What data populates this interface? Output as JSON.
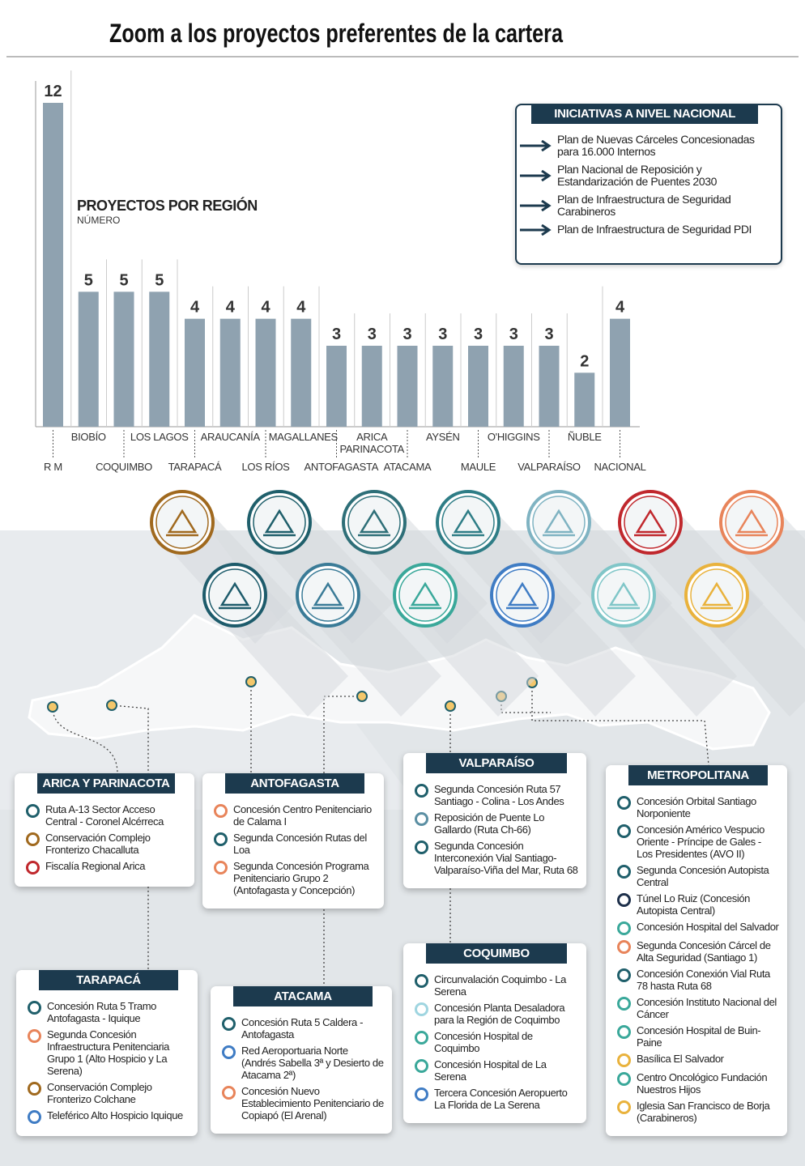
{
  "title": "Zoom a los proyectos preferentes de la cartera",
  "chart_data": {
    "type": "bar",
    "title": "PROYECTOS POR REGIÓN",
    "subtitle": "NÚMERO",
    "categories": [
      "R M",
      "BIOBÍO",
      "COQUIMBO",
      "LOS LAGOS",
      "TARAPACÁ",
      "ARAUCANÍA",
      "LOS RÍOS",
      "MAGALLANES",
      "ANTOFAGASTA",
      "ARICA PARINACOTA",
      "ATACAMA",
      "AYSÉN",
      "MAULE",
      "O'HIGGINS",
      "VALPARAÍSO",
      "ÑUBLE",
      "NACIONAL"
    ],
    "values": [
      12,
      5,
      5,
      5,
      4,
      4,
      4,
      4,
      3,
      3,
      3,
      3,
      3,
      3,
      3,
      2,
      4
    ],
    "color": "#8fa2b0",
    "ylim": [
      0,
      12
    ]
  },
  "national": {
    "title": "INICIATIVAS A NIVEL NACIONAL",
    "items": [
      "Plan de Nuevas Cárceles Concesionadas para 16.000 Internos",
      "Plan Nacional de Reposición y Estandarización de Puentes 2030",
      "Plan de Infraestructura de Seguridad Carabineros",
      "Plan de Infraestructura de Seguridad PDI"
    ]
  },
  "regions": [
    {
      "title": "ARICA Y PARINACOTA",
      "items": [
        {
          "text": "Ruta A-13 Sector Acceso Central - Coronel Alcérreca",
          "color": "#1f5f6b"
        },
        {
          "text": "Conservación Complejo Fronterizo Chacalluta",
          "color": "#a0691e"
        },
        {
          "text": "Fiscalía Regional Arica",
          "color": "#c0282d"
        }
      ]
    },
    {
      "title": "ANTOFAGASTA",
      "items": [
        {
          "text": "Concesión Centro Penitenciario de Calama I",
          "color": "#e8845a"
        },
        {
          "text": "Segunda Concesión Rutas del Loa",
          "color": "#1f5f6b"
        },
        {
          "text": "Segunda Concesión Programa Penitenciario Grupo 2 (Antofagasta y Concepción)",
          "color": "#e8845a"
        }
      ]
    },
    {
      "title": "VALPARAÍSO",
      "items": [
        {
          "text": "Segunda Concesión Ruta 57 Santiago - Colina - Los Andes",
          "color": "#1f5f6b"
        },
        {
          "text": "Reposición de Puente Lo Gallardo (Ruta Ch-66)",
          "color": "#5b8fa3"
        },
        {
          "text": "Segunda Concesión Interconexión Vial Santiago-Valparaíso-Viña del Mar, Ruta 68",
          "color": "#1f5f6b"
        }
      ]
    },
    {
      "title": "METROPOLITANA",
      "items": [
        {
          "text": "Concesión Orbital Santiago Norponiente",
          "color": "#1f5f6b"
        },
        {
          "text": "Concesión Américo Vespucio Oriente - Príncipe de Gales - Los Presidentes (AVO II)",
          "color": "#1f5f6b"
        },
        {
          "text": "Segunda Concesión Autopista Central",
          "color": "#1f5f6b"
        },
        {
          "text": "Túnel Lo Ruiz (Concesión Autopista Central)",
          "color": "#1d2f4a"
        },
        {
          "text": "Concesión Hospital del Salvador",
          "color": "#3aa89a"
        },
        {
          "text": "Segunda Concesión Cárcel de Alta Seguridad (Santiago 1)",
          "color": "#e8845a"
        },
        {
          "text": "Concesión Conexión Vial Ruta 78 hasta Ruta 68",
          "color": "#1f5f6b"
        },
        {
          "text": "Concesión Instituto Nacional del Cáncer",
          "color": "#3aa89a"
        },
        {
          "text": "Concesión Hospital de Buin-Paine",
          "color": "#3aa89a"
        },
        {
          "text": "Basílica El Salvador",
          "color": "#e9b23c"
        },
        {
          "text": "Centro Oncológico Fundación Nuestros Hijos",
          "color": "#3aa89a"
        },
        {
          "text": "Iglesia San Francisco de Borja (Carabineros)",
          "color": "#e9b23c"
        }
      ]
    },
    {
      "title": "TARAPACÁ",
      "items": [
        {
          "text": "Concesión Ruta 5 Tramo Antofagasta - Iquique",
          "color": "#1f5f6b"
        },
        {
          "text": "Segunda Concesión Infraestructura Penitenciaria Grupo 1 (Alto Hospicio y La Serena)",
          "color": "#e8845a"
        },
        {
          "text": "Conservación Complejo Fronterizo Colchane",
          "color": "#a0691e"
        },
        {
          "text": "Teleférico Alto Hospicio Iquique",
          "color": "#3f7cc4"
        }
      ]
    },
    {
      "title": "ATACAMA",
      "items": [
        {
          "text": "Concesión Ruta 5 Caldera - Antofagasta",
          "color": "#1f5f6b"
        },
        {
          "text": "Red Aeroportuaria Norte (Andrés Sabella 3ª y Desierto de Atacama 2ª)",
          "color": "#3f7cc4"
        },
        {
          "text": "Concesión Nuevo Establecimiento Penitenciario de Copiapó (El Arenal)",
          "color": "#e8845a"
        }
      ]
    },
    {
      "title": "COQUIMBO",
      "items": [
        {
          "text": "Circunvalación Coquimbo - La Serena",
          "color": "#1f5f6b"
        },
        {
          "text": "Concesión Planta Desaladora para la Región de Coquimbo",
          "color": "#9fd5e0"
        },
        {
          "text": "Concesión Hospital de Coquimbo",
          "color": "#3aa89a"
        },
        {
          "text": "Concesión Hospital de La Serena",
          "color": "#3aa89a"
        },
        {
          "text": "Tercera Concesión Aeropuerto La Florida de La Serena",
          "color": "#3f7cc4"
        }
      ]
    }
  ]
}
